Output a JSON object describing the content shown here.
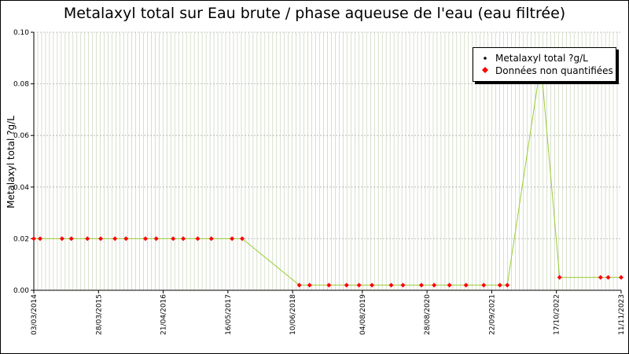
{
  "chart_data": {
    "type": "line",
    "title": "Metalaxyl total sur Eau brute / phase aqueuse de l'eau (eau filtrée)",
    "ylabel": "Metalaxyl total ?g/L",
    "xlabel": "",
    "ylim": [
      0,
      0.1
    ],
    "xlim": [
      "2014-03-03",
      "2023-11-11"
    ],
    "y_ticks": [
      "0.00",
      "0.02",
      "0.04",
      "0.06",
      "0.08",
      "0.10"
    ],
    "x_ticks": [
      {
        "date": "2014-03-03",
        "label": "03/03/2014"
      },
      {
        "date": "2015-03-28",
        "label": "28/03/2015"
      },
      {
        "date": "2016-04-21",
        "label": "21/04/2016"
      },
      {
        "date": "2017-05-16",
        "label": "16/05/2017"
      },
      {
        "date": "2018-06-10",
        "label": "10/06/2018"
      },
      {
        "date": "2019-08-04",
        "label": "04/08/2019"
      },
      {
        "date": "2020-08-28",
        "label": "28/08/2020"
      },
      {
        "date": "2021-09-22",
        "label": "22/09/2021"
      },
      {
        "date": "2022-10-17",
        "label": "17/10/2022"
      },
      {
        "date": "2023-11-11",
        "label": "11/11/2023"
      }
    ],
    "grid": true,
    "legend_position": "top-right",
    "series": [
      {
        "name": "Metalaxyl total ?g/L",
        "color": "#99cc33",
        "marker_color": "#000000",
        "points": [
          [
            "2014-03-03",
            0.02
          ],
          [
            "2014-04-10",
            0.02
          ],
          [
            "2014-08-20",
            0.02
          ],
          [
            "2014-10-15",
            0.02
          ],
          [
            "2015-01-20",
            0.02
          ],
          [
            "2015-04-10",
            0.02
          ],
          [
            "2015-07-05",
            0.02
          ],
          [
            "2015-09-10",
            0.02
          ],
          [
            "2016-01-05",
            0.02
          ],
          [
            "2016-03-10",
            0.02
          ],
          [
            "2016-06-20",
            0.02
          ],
          [
            "2016-08-20",
            0.02
          ],
          [
            "2016-11-15",
            0.02
          ],
          [
            "2017-02-05",
            0.02
          ],
          [
            "2017-06-10",
            0.02
          ],
          [
            "2017-08-10",
            0.02
          ],
          [
            "2018-07-20",
            0.002
          ],
          [
            "2018-09-20",
            0.002
          ],
          [
            "2019-01-15",
            0.002
          ],
          [
            "2019-05-01",
            0.002
          ],
          [
            "2019-07-15",
            0.002
          ],
          [
            "2019-10-01",
            0.002
          ],
          [
            "2020-01-25",
            0.002
          ],
          [
            "2020-04-05",
            0.002
          ],
          [
            "2020-07-25",
            0.002
          ],
          [
            "2020-10-10",
            0.002
          ],
          [
            "2021-01-10",
            0.002
          ],
          [
            "2021-04-20",
            0.002
          ],
          [
            "2021-08-05",
            0.002
          ],
          [
            "2021-11-10",
            0.002
          ],
          [
            "2021-12-25",
            0.002
          ],
          [
            "2022-07-15",
            0.088
          ],
          [
            "2022-11-05",
            0.005
          ],
          [
            "2023-07-10",
            0.005
          ],
          [
            "2023-08-25",
            0.005
          ],
          [
            "2023-11-11",
            0.005
          ]
        ]
      },
      {
        "name": "Données non quantifiées",
        "color": "#ff0000",
        "marker_only": true,
        "points": [
          [
            "2014-03-03",
            0.02
          ],
          [
            "2014-04-10",
            0.02
          ],
          [
            "2014-08-20",
            0.02
          ],
          [
            "2014-10-15",
            0.02
          ],
          [
            "2015-01-20",
            0.02
          ],
          [
            "2015-04-10",
            0.02
          ],
          [
            "2015-07-05",
            0.02
          ],
          [
            "2015-09-10",
            0.02
          ],
          [
            "2016-01-05",
            0.02
          ],
          [
            "2016-03-10",
            0.02
          ],
          [
            "2016-06-20",
            0.02
          ],
          [
            "2016-08-20",
            0.02
          ],
          [
            "2016-11-15",
            0.02
          ],
          [
            "2017-02-05",
            0.02
          ],
          [
            "2017-06-10",
            0.02
          ],
          [
            "2017-08-10",
            0.02
          ],
          [
            "2018-07-20",
            0.002
          ],
          [
            "2018-09-20",
            0.002
          ],
          [
            "2019-01-15",
            0.002
          ],
          [
            "2019-05-01",
            0.002
          ],
          [
            "2019-07-15",
            0.002
          ],
          [
            "2019-10-01",
            0.002
          ],
          [
            "2020-01-25",
            0.002
          ],
          [
            "2020-04-05",
            0.002
          ],
          [
            "2020-07-25",
            0.002
          ],
          [
            "2020-10-10",
            0.002
          ],
          [
            "2021-01-10",
            0.002
          ],
          [
            "2021-04-20",
            0.002
          ],
          [
            "2021-08-05",
            0.002
          ],
          [
            "2021-11-10",
            0.002
          ],
          [
            "2021-12-25",
            0.002
          ],
          [
            "2022-11-05",
            0.005
          ],
          [
            "2023-07-10",
            0.005
          ],
          [
            "2023-08-25",
            0.005
          ],
          [
            "2023-11-11",
            0.005
          ]
        ]
      }
    ]
  },
  "legend": {
    "line_label": "Metalaxyl total ?g/L",
    "nq_label": "Données non quantifiées"
  }
}
